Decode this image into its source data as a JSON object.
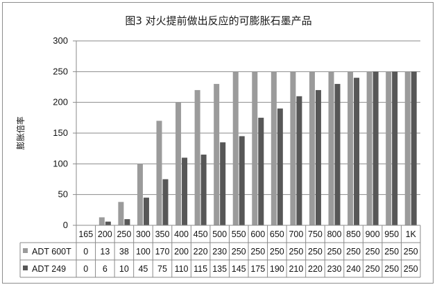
{
  "chart_data": {
    "type": "bar",
    "title": "图3 对火提前做出反应的可膨胀石墨产品",
    "xlabel": "",
    "ylabel": "膨胀倍率",
    "ylim": [
      0,
      300
    ],
    "yticks": [
      0,
      50,
      100,
      150,
      200,
      250,
      300
    ],
    "grid": "horizontal",
    "legend": "data-table",
    "categories": [
      "165",
      "200",
      "250",
      "300",
      "350",
      "400",
      "450",
      "500",
      "550",
      "600",
      "650",
      "700",
      "750",
      "800",
      "850",
      "900",
      "950",
      "1K"
    ],
    "series": [
      {
        "name": "ADT 600T",
        "color": "#9b9b9b",
        "values": [
          0,
          13,
          38,
          100,
          170,
          200,
          220,
          230,
          250,
          250,
          250,
          250,
          250,
          250,
          250,
          250,
          250,
          250
        ]
      },
      {
        "name": "ADT 249",
        "color": "#575757",
        "values": [
          0,
          6,
          10,
          45,
          75,
          110,
          115,
          135,
          145,
          175,
          190,
          210,
          220,
          230,
          240,
          250,
          250,
          250
        ]
      }
    ]
  }
}
